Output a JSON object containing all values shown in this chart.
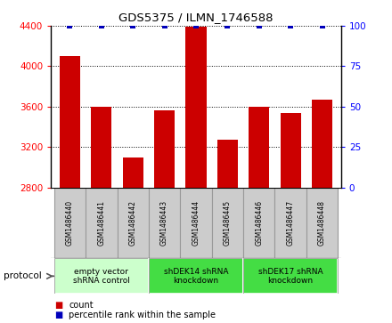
{
  "title": "GDS5375 / ILMN_1746588",
  "samples": [
    "GSM1486440",
    "GSM1486441",
    "GSM1486442",
    "GSM1486443",
    "GSM1486444",
    "GSM1486445",
    "GSM1486446",
    "GSM1486447",
    "GSM1486448"
  ],
  "counts": [
    4100,
    3600,
    3100,
    3560,
    4390,
    3270,
    3600,
    3540,
    3670
  ],
  "percentiles": [
    100,
    100,
    100,
    100,
    100,
    100,
    100,
    100,
    100
  ],
  "ylim_left": [
    2800,
    4400
  ],
  "ylim_right": [
    0,
    100
  ],
  "yticks_left": [
    2800,
    3200,
    3600,
    4000,
    4400
  ],
  "yticks_right": [
    0,
    25,
    50,
    75,
    100
  ],
  "bar_color": "#cc0000",
  "dot_color": "#0000bb",
  "groups": [
    {
      "label": "empty vector\nshRNA control",
      "start": 0,
      "end": 3,
      "color": "#ccffcc"
    },
    {
      "label": "shDEK14 shRNA\nknockdown",
      "start": 3,
      "end": 6,
      "color": "#44dd44"
    },
    {
      "label": "shDEK17 shRNA\nknockdown",
      "start": 6,
      "end": 9,
      "color": "#44dd44"
    }
  ],
  "protocol_label": "protocol",
  "legend_count_label": "count",
  "legend_pct_label": "percentile rank within the sample",
  "sample_box_color": "#cccccc",
  "sample_box_edge": "#999999"
}
